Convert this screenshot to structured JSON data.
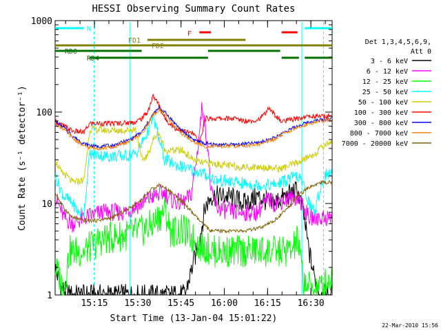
{
  "chart_data": {
    "type": "line",
    "title": "HESSI Observing Summary Count Rates",
    "xlabel": "Start Time (13-Jan-04 15:01:22)",
    "ylabel": "Count Rate (s⁻¹ detector⁻¹)",
    "yscale": "log",
    "ylim": [
      1,
      1000
    ],
    "xlim_minutes": [
      0,
      96
    ],
    "x_ticks": [
      "15:15",
      "15:30",
      "15:45",
      "16:00",
      "16:15",
      "16:30"
    ],
    "y_ticks": [
      "1",
      "10",
      "100",
      "1000"
    ],
    "legend": {
      "header": [
        "Det 1,3,4,5,6,9,",
        "Att 0"
      ],
      "placement": "right",
      "entries": [
        {
          "label": "3 - 6 keV",
          "color": "#000000"
        },
        {
          "label": "6 - 12 keV",
          "color": "#ff00ff"
        },
        {
          "label": "12 - 25 keV",
          "color": "#00ff00"
        },
        {
          "label": "25 - 50 keV",
          "color": "#00ffff"
        },
        {
          "label": "50 - 100 keV",
          "color": "#cccc00"
        },
        {
          "label": "100 - 300 keV",
          "color": "#ff0000"
        },
        {
          "label": "300 - 800 keV",
          "color": "#0000ff"
        },
        {
          "label": "800 - 7000 keV",
          "color": "#ff8000"
        },
        {
          "label": "7000 - 20000 keV",
          "color": "#806000"
        }
      ]
    },
    "flag_labels": {
      "n": "N",
      "f": "F",
      "fd1": "FD1",
      "fd2": "FD2",
      "rd0": "RD0",
      "rd4": "RD4"
    },
    "flag_colors": {
      "n": "#00ffff",
      "f": "#ff0000",
      "fd": "#808000",
      "rd": "#007000"
    },
    "series": [
      {
        "name": "3 - 6 keV",
        "color": "#000000",
        "points": [
          [
            0,
            2
          ],
          [
            2,
            1.2
          ],
          [
            5,
            1
          ],
          [
            12,
            1
          ],
          [
            20,
            1
          ],
          [
            30,
            1
          ],
          [
            40,
            1
          ],
          [
            45,
            1
          ],
          [
            50,
            4
          ],
          [
            52,
            9
          ],
          [
            54,
            12
          ],
          [
            60,
            12
          ],
          [
            66,
            10
          ],
          [
            70,
            12
          ],
          [
            75,
            10
          ],
          [
            80,
            12
          ],
          [
            84,
            14
          ],
          [
            86,
            8
          ],
          [
            88,
            3
          ],
          [
            90,
            1.5
          ],
          [
            92,
            1
          ],
          [
            96,
            1
          ]
        ]
      },
      {
        "name": "6 - 12 keV",
        "color": "#ff00ff",
        "points": [
          [
            0,
            12
          ],
          [
            3,
            7
          ],
          [
            6,
            6
          ],
          [
            10,
            7
          ],
          [
            16,
            8
          ],
          [
            24,
            8
          ],
          [
            30,
            10
          ],
          [
            34,
            12
          ],
          [
            38,
            13
          ],
          [
            40,
            11
          ],
          [
            44,
            10
          ],
          [
            47,
            12
          ],
          [
            49,
            30
          ],
          [
            51,
            120
          ],
          [
            53,
            40
          ],
          [
            54,
            13
          ],
          [
            56,
            9
          ],
          [
            62,
            8
          ],
          [
            70,
            8
          ],
          [
            74,
            11
          ],
          [
            76,
            10
          ],
          [
            80,
            11
          ],
          [
            84,
            12
          ],
          [
            86,
            9
          ],
          [
            88,
            7
          ],
          [
            92,
            7
          ],
          [
            94,
            7
          ]
        ]
      },
      {
        "name": "12 - 25 keV",
        "color": "#00ff00",
        "points": [
          [
            0,
            2
          ],
          [
            3,
            1.2
          ],
          [
            5,
            3
          ],
          [
            10,
            3
          ],
          [
            16,
            4
          ],
          [
            24,
            4.5
          ],
          [
            30,
            5
          ],
          [
            34,
            6
          ],
          [
            38,
            8.5
          ],
          [
            40,
            5
          ],
          [
            45,
            5
          ],
          [
            50,
            3.5
          ],
          [
            55,
            3
          ],
          [
            60,
            3
          ],
          [
            66,
            3
          ],
          [
            72,
            3
          ],
          [
            78,
            3
          ],
          [
            82,
            3
          ],
          [
            84,
            4
          ],
          [
            86,
            1.5
          ],
          [
            88,
            1.2
          ],
          [
            92,
            1.2
          ],
          [
            95,
            1.5
          ]
        ]
      },
      {
        "name": "25 - 50 keV",
        "color": "#00ffff",
        "points": [
          [
            0,
            20
          ],
          [
            3,
            12
          ],
          [
            6,
            10
          ],
          [
            8,
            8
          ],
          [
            10,
            8
          ],
          [
            12,
            35
          ],
          [
            18,
            33
          ],
          [
            24,
            33
          ],
          [
            28,
            35
          ],
          [
            30,
            45
          ],
          [
            32,
            60
          ],
          [
            34,
            90
          ],
          [
            36,
            50
          ],
          [
            38,
            30
          ],
          [
            44,
            25
          ],
          [
            50,
            22
          ],
          [
            56,
            18
          ],
          [
            62,
            17
          ],
          [
            70,
            16
          ],
          [
            76,
            16
          ],
          [
            80,
            18
          ],
          [
            84,
            20
          ],
          [
            86,
            16
          ],
          [
            88,
            10
          ],
          [
            90,
            8
          ],
          [
            92,
            15
          ],
          [
            94,
            22
          ],
          [
            96,
            20
          ]
        ]
      },
      {
        "name": "50 - 100 keV",
        "color": "#cccc00",
        "points": [
          [
            0,
            30
          ],
          [
            2,
            22
          ],
          [
            4,
            20
          ],
          [
            6,
            17
          ],
          [
            10,
            18
          ],
          [
            12,
            65
          ],
          [
            18,
            63
          ],
          [
            24,
            63
          ],
          [
            28,
            65
          ],
          [
            30,
            30
          ],
          [
            32,
            33
          ],
          [
            34,
            50
          ],
          [
            36,
            60
          ],
          [
            38,
            38
          ],
          [
            44,
            38
          ],
          [
            48,
            30
          ],
          [
            50,
            28
          ],
          [
            56,
            27
          ],
          [
            64,
            25
          ],
          [
            72,
            25
          ],
          [
            78,
            24
          ],
          [
            80,
            25
          ],
          [
            84,
            28
          ],
          [
            86,
            30
          ],
          [
            90,
            35
          ],
          [
            94,
            45
          ],
          [
            96,
            48
          ]
        ]
      },
      {
        "name": "100 - 300 keV",
        "color": "#ff0000",
        "points": [
          [
            0,
            80
          ],
          [
            3,
            70
          ],
          [
            6,
            62
          ],
          [
            10,
            60
          ],
          [
            12,
            75
          ],
          [
            18,
            75
          ],
          [
            24,
            76
          ],
          [
            28,
            78
          ],
          [
            30,
            85
          ],
          [
            32,
            100
          ],
          [
            34,
            150
          ],
          [
            36,
            120
          ],
          [
            38,
            85
          ],
          [
            42,
            65
          ],
          [
            46,
            60
          ],
          [
            48,
            58
          ],
          [
            50,
            45
          ],
          [
            52,
            85
          ],
          [
            56,
            85
          ],
          [
            62,
            85
          ],
          [
            66,
            80
          ],
          [
            70,
            82
          ],
          [
            72,
            90
          ],
          [
            74,
            110
          ],
          [
            76,
            95
          ],
          [
            78,
            80
          ],
          [
            80,
            80
          ],
          [
            84,
            85
          ],
          [
            88,
            90
          ],
          [
            92,
            90
          ],
          [
            96,
            90
          ]
        ]
      },
      {
        "name": "300 - 800 keV",
        "color": "#0000ff",
        "points": [
          [
            0,
            78
          ],
          [
            3,
            68
          ],
          [
            6,
            55
          ],
          [
            10,
            45
          ],
          [
            14,
            42
          ],
          [
            20,
            43
          ],
          [
            26,
            50
          ],
          [
            30,
            60
          ],
          [
            32,
            75
          ],
          [
            34,
            95
          ],
          [
            36,
            110
          ],
          [
            38,
            100
          ],
          [
            40,
            85
          ],
          [
            44,
            62
          ],
          [
            48,
            50
          ],
          [
            52,
            45
          ],
          [
            56,
            44
          ],
          [
            62,
            44
          ],
          [
            70,
            46
          ],
          [
            76,
            52
          ],
          [
            80,
            62
          ],
          [
            84,
            70
          ],
          [
            88,
            78
          ],
          [
            92,
            82
          ],
          [
            96,
            85
          ]
        ]
      },
      {
        "name": "800 - 7000 keV",
        "color": "#ff8000",
        "points": [
          [
            0,
            75
          ],
          [
            3,
            65
          ],
          [
            6,
            52
          ],
          [
            10,
            42
          ],
          [
            14,
            40
          ],
          [
            20,
            41
          ],
          [
            26,
            48
          ],
          [
            30,
            58
          ],
          [
            32,
            72
          ],
          [
            34,
            92
          ],
          [
            36,
            105
          ],
          [
            38,
            95
          ],
          [
            40,
            80
          ],
          [
            44,
            58
          ],
          [
            48,
            47
          ],
          [
            52,
            42
          ],
          [
            56,
            42
          ],
          [
            62,
            42
          ],
          [
            70,
            44
          ],
          [
            76,
            50
          ],
          [
            80,
            60
          ],
          [
            84,
            67
          ],
          [
            88,
            75
          ],
          [
            92,
            80
          ],
          [
            96,
            82
          ]
        ]
      },
      {
        "name": "7000 - 20000 keV",
        "color": "#806000",
        "points": [
          [
            0,
            13
          ],
          [
            3,
            9
          ],
          [
            6,
            7
          ],
          [
            10,
            6.5
          ],
          [
            14,
            6.5
          ],
          [
            20,
            7
          ],
          [
            26,
            9
          ],
          [
            30,
            11
          ],
          [
            33,
            14
          ],
          [
            36,
            16
          ],
          [
            38,
            15
          ],
          [
            42,
            12
          ],
          [
            46,
            9
          ],
          [
            50,
            6.5
          ],
          [
            54,
            5
          ],
          [
            60,
            5
          ],
          [
            66,
            5
          ],
          [
            72,
            5.5
          ],
          [
            76,
            6.5
          ],
          [
            80,
            8.5
          ],
          [
            84,
            12
          ],
          [
            88,
            15
          ],
          [
            92,
            17
          ],
          [
            96,
            17
          ]
        ]
      }
    ]
  },
  "footer": {
    "timestamp": "22-Mar-2010 15:56"
  }
}
